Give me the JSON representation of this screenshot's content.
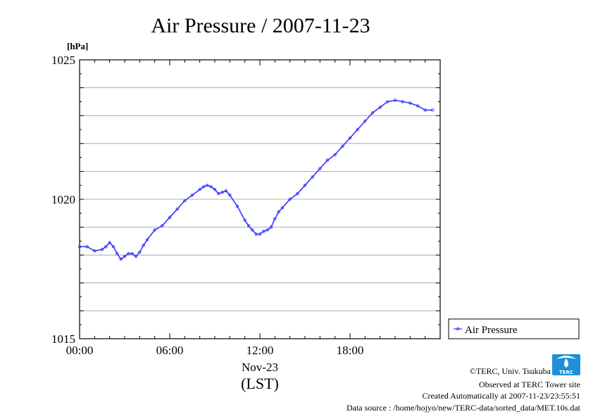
{
  "chart_data": {
    "type": "line",
    "title": "Air Pressure / 2007-11-23",
    "ylabel_unit": "[hPa]",
    "ylim": [
      1015,
      1025
    ],
    "y_major_ticks": [
      1015,
      1020,
      1025
    ],
    "y_tick_labels": [
      "1015",
      "1020",
      "1025"
    ],
    "y_grid_step": 1,
    "xlim": [
      0,
      24
    ],
    "x_ticks": [
      0,
      6,
      12,
      18
    ],
    "x_tick_labels": [
      "00:00",
      "06:00",
      "12:00",
      "18:00"
    ],
    "x_sublabel": "Nov-23",
    "x_label": "(LST)",
    "grid": true,
    "legend_position": "right",
    "series": [
      {
        "name": "Air Pressure",
        "color": "#3333ff",
        "x": [
          0,
          0.5,
          1,
          1.5,
          1.75,
          2,
          2.25,
          2.5,
          2.75,
          3,
          3.25,
          3.5,
          3.75,
          4,
          4.25,
          4.5,
          5,
          5.5,
          6,
          6.5,
          7,
          7.5,
          8,
          8.25,
          8.5,
          8.75,
          9,
          9.25,
          9.5,
          9.75,
          10,
          10.5,
          11,
          11.25,
          11.5,
          11.75,
          12,
          12.25,
          12.5,
          12.75,
          13,
          13.25,
          13.5,
          14,
          14.5,
          15,
          15.5,
          16,
          16.5,
          17,
          17.5,
          18,
          18.5,
          19,
          19.5,
          20,
          20.5,
          21,
          21.5,
          22,
          22.5,
          23,
          23.5
        ],
        "values": [
          1018.3,
          1018.3,
          1018.15,
          1018.2,
          1018.3,
          1018.45,
          1018.3,
          1018.05,
          1017.85,
          1017.95,
          1018.05,
          1018.05,
          1017.95,
          1018.1,
          1018.35,
          1018.55,
          1018.9,
          1019.05,
          1019.35,
          1019.65,
          1019.95,
          1020.15,
          1020.35,
          1020.45,
          1020.5,
          1020.45,
          1020.35,
          1020.2,
          1020.25,
          1020.3,
          1020.15,
          1019.75,
          1019.25,
          1019.05,
          1018.9,
          1018.75,
          1018.75,
          1018.85,
          1018.9,
          1019.0,
          1019.3,
          1019.55,
          1019.7,
          1020.0,
          1020.2,
          1020.5,
          1020.8,
          1021.1,
          1021.4,
          1021.6,
          1021.9,
          1022.2,
          1022.5,
          1022.8,
          1023.1,
          1023.3,
          1023.5,
          1023.55,
          1023.5,
          1023.45,
          1023.35,
          1023.2,
          1023.2
        ]
      }
    ]
  },
  "footer": {
    "copyright": "©TERC, Univ. Tsukuba",
    "observed": "Observed at TERC Tower site",
    "created": "Created Automatically at 2007-11-23/23:55:51",
    "source": "Data source : /home/hojyo/new/TERC-data/sorted_data/MET.10s.dat"
  },
  "logo": {
    "text": "TERC"
  }
}
